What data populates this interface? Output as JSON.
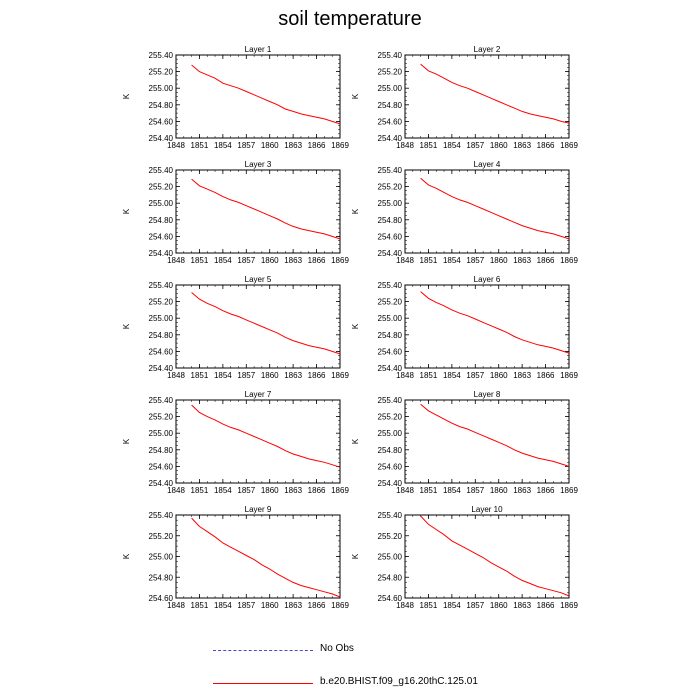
{
  "title": "soil temperature",
  "legend": {
    "obs_label": "No Obs",
    "obs_color": "#4a4ad0",
    "model_label": "b.e20.BHIST.f09_g16.20thC.125.01",
    "model_color": "#ff0000"
  },
  "chart_data": {
    "type": "line",
    "ylabel": "K",
    "xticks": [
      "1848",
      "1851",
      "1854",
      "1857",
      "1860",
      "1863",
      "1866",
      "1869"
    ],
    "xlim": [
      1848,
      1869
    ],
    "panels": [
      {
        "title": "Layer 1",
        "ylim": [
          254.4,
          255.4
        ],
        "yticks": [
          "254.40",
          "254.60",
          "254.80",
          "255.00",
          "255.20",
          "255.40"
        ],
        "x": [
          1850,
          1851,
          1852,
          1853,
          1854,
          1855,
          1856,
          1857,
          1858,
          1859,
          1860,
          1861,
          1862,
          1863,
          1864,
          1865,
          1866,
          1867,
          1868,
          1869
        ],
        "y": [
          255.28,
          255.2,
          255.16,
          255.12,
          255.06,
          255.03,
          255.0,
          254.96,
          254.92,
          254.88,
          254.84,
          254.8,
          254.75,
          254.72,
          254.69,
          254.67,
          254.65,
          254.63,
          254.6,
          254.57
        ]
      },
      {
        "title": "Layer 2",
        "ylim": [
          254.4,
          255.4
        ],
        "yticks": [
          "254.40",
          "254.60",
          "254.80",
          "255.00",
          "255.20",
          "255.40"
        ],
        "x": [
          1850,
          1851,
          1852,
          1853,
          1854,
          1855,
          1856,
          1857,
          1858,
          1859,
          1860,
          1861,
          1862,
          1863,
          1864,
          1865,
          1866,
          1867,
          1868,
          1869
        ],
        "y": [
          255.29,
          255.21,
          255.17,
          255.12,
          255.07,
          255.03,
          255.0,
          254.96,
          254.92,
          254.88,
          254.84,
          254.8,
          254.76,
          254.72,
          254.69,
          254.67,
          254.65,
          254.63,
          254.6,
          254.58
        ]
      },
      {
        "title": "Layer 3",
        "ylim": [
          254.4,
          255.4
        ],
        "yticks": [
          "254.40",
          "254.60",
          "254.80",
          "255.00",
          "255.20",
          "255.40"
        ],
        "x": [
          1850,
          1851,
          1852,
          1853,
          1854,
          1855,
          1856,
          1857,
          1858,
          1859,
          1860,
          1861,
          1862,
          1863,
          1864,
          1865,
          1866,
          1867,
          1868,
          1869
        ],
        "y": [
          255.29,
          255.21,
          255.17,
          255.13,
          255.08,
          255.04,
          255.01,
          254.97,
          254.93,
          254.89,
          254.85,
          254.81,
          254.76,
          254.72,
          254.69,
          254.67,
          254.65,
          254.63,
          254.6,
          254.57
        ]
      },
      {
        "title": "Layer 4",
        "ylim": [
          254.4,
          255.4
        ],
        "yticks": [
          "254.40",
          "254.60",
          "254.80",
          "255.00",
          "255.20",
          "255.40"
        ],
        "x": [
          1850,
          1851,
          1852,
          1853,
          1854,
          1855,
          1856,
          1857,
          1858,
          1859,
          1860,
          1861,
          1862,
          1863,
          1864,
          1865,
          1866,
          1867,
          1868,
          1869
        ],
        "y": [
          255.3,
          255.22,
          255.18,
          255.13,
          255.08,
          255.04,
          255.01,
          254.97,
          254.93,
          254.89,
          254.85,
          254.81,
          254.77,
          254.73,
          254.7,
          254.67,
          254.65,
          254.63,
          254.6,
          254.57
        ]
      },
      {
        "title": "Layer 5",
        "ylim": [
          254.4,
          255.4
        ],
        "yticks": [
          "254.40",
          "254.60",
          "254.80",
          "255.00",
          "255.20",
          "255.40"
        ],
        "x": [
          1850,
          1851,
          1852,
          1853,
          1854,
          1855,
          1856,
          1857,
          1858,
          1859,
          1860,
          1861,
          1862,
          1863,
          1864,
          1865,
          1866,
          1867,
          1868,
          1869
        ],
        "y": [
          255.31,
          255.23,
          255.18,
          255.14,
          255.09,
          255.05,
          255.02,
          254.98,
          254.94,
          254.9,
          254.86,
          254.82,
          254.77,
          254.73,
          254.7,
          254.67,
          254.65,
          254.63,
          254.6,
          254.57
        ]
      },
      {
        "title": "Layer 6",
        "ylim": [
          254.4,
          255.4
        ],
        "yticks": [
          "254.40",
          "254.60",
          "254.80",
          "255.00",
          "255.20",
          "255.40"
        ],
        "x": [
          1850,
          1851,
          1852,
          1853,
          1854,
          1855,
          1856,
          1857,
          1858,
          1859,
          1860,
          1861,
          1862,
          1863,
          1864,
          1865,
          1866,
          1867,
          1868,
          1869
        ],
        "y": [
          255.32,
          255.24,
          255.19,
          255.15,
          255.1,
          255.06,
          255.03,
          254.99,
          254.95,
          254.91,
          254.87,
          254.83,
          254.78,
          254.74,
          254.71,
          254.68,
          254.66,
          254.64,
          254.61,
          254.58
        ]
      },
      {
        "title": "Layer 7",
        "ylim": [
          254.4,
          255.4
        ],
        "yticks": [
          "254.40",
          "254.60",
          "254.80",
          "255.00",
          "255.20",
          "255.40"
        ],
        "x": [
          1850,
          1851,
          1852,
          1853,
          1854,
          1855,
          1856,
          1857,
          1858,
          1859,
          1860,
          1861,
          1862,
          1863,
          1864,
          1865,
          1866,
          1867,
          1868,
          1869
        ],
        "y": [
          255.34,
          255.25,
          255.2,
          255.16,
          255.11,
          255.07,
          255.04,
          255.0,
          254.96,
          254.92,
          254.88,
          254.84,
          254.79,
          254.75,
          254.72,
          254.69,
          254.67,
          254.65,
          254.62,
          254.59
        ]
      },
      {
        "title": "Layer 8",
        "ylim": [
          254.4,
          255.4
        ],
        "yticks": [
          "254.40",
          "254.60",
          "254.80",
          "255.00",
          "255.20",
          "255.40"
        ],
        "x": [
          1850,
          1851,
          1852,
          1853,
          1854,
          1855,
          1856,
          1857,
          1858,
          1859,
          1860,
          1861,
          1862,
          1863,
          1864,
          1865,
          1866,
          1867,
          1868,
          1869
        ],
        "y": [
          255.35,
          255.27,
          255.22,
          255.17,
          255.12,
          255.08,
          255.05,
          255.01,
          254.97,
          254.93,
          254.89,
          254.85,
          254.8,
          254.76,
          254.73,
          254.7,
          254.68,
          254.66,
          254.63,
          254.6
        ]
      },
      {
        "title": "Layer 9",
        "ylim": [
          254.6,
          255.4
        ],
        "yticks": [
          "254.60",
          "254.80",
          "255.00",
          "255.20",
          "255.40"
        ],
        "x": [
          1850,
          1851,
          1852,
          1853,
          1854,
          1855,
          1856,
          1857,
          1858,
          1859,
          1860,
          1861,
          1862,
          1863,
          1864,
          1865,
          1866,
          1867,
          1868,
          1869
        ],
        "y": [
          255.37,
          255.29,
          255.24,
          255.19,
          255.13,
          255.09,
          255.05,
          255.01,
          254.97,
          254.92,
          254.88,
          254.83,
          254.79,
          254.75,
          254.72,
          254.7,
          254.68,
          254.66,
          254.64,
          254.61
        ]
      },
      {
        "title": "Layer 10",
        "ylim": [
          254.6,
          255.4
        ],
        "yticks": [
          "254.60",
          "254.80",
          "255.00",
          "255.20",
          "255.40"
        ],
        "x": [
          1850,
          1851,
          1852,
          1853,
          1854,
          1855,
          1856,
          1857,
          1858,
          1859,
          1860,
          1861,
          1862,
          1863,
          1864,
          1865,
          1866,
          1867,
          1868,
          1869
        ],
        "y": [
          255.39,
          255.31,
          255.26,
          255.21,
          255.15,
          255.11,
          255.07,
          255.03,
          254.99,
          254.94,
          254.9,
          254.86,
          254.81,
          254.77,
          254.74,
          254.71,
          254.69,
          254.67,
          254.65,
          254.62
        ]
      }
    ]
  }
}
